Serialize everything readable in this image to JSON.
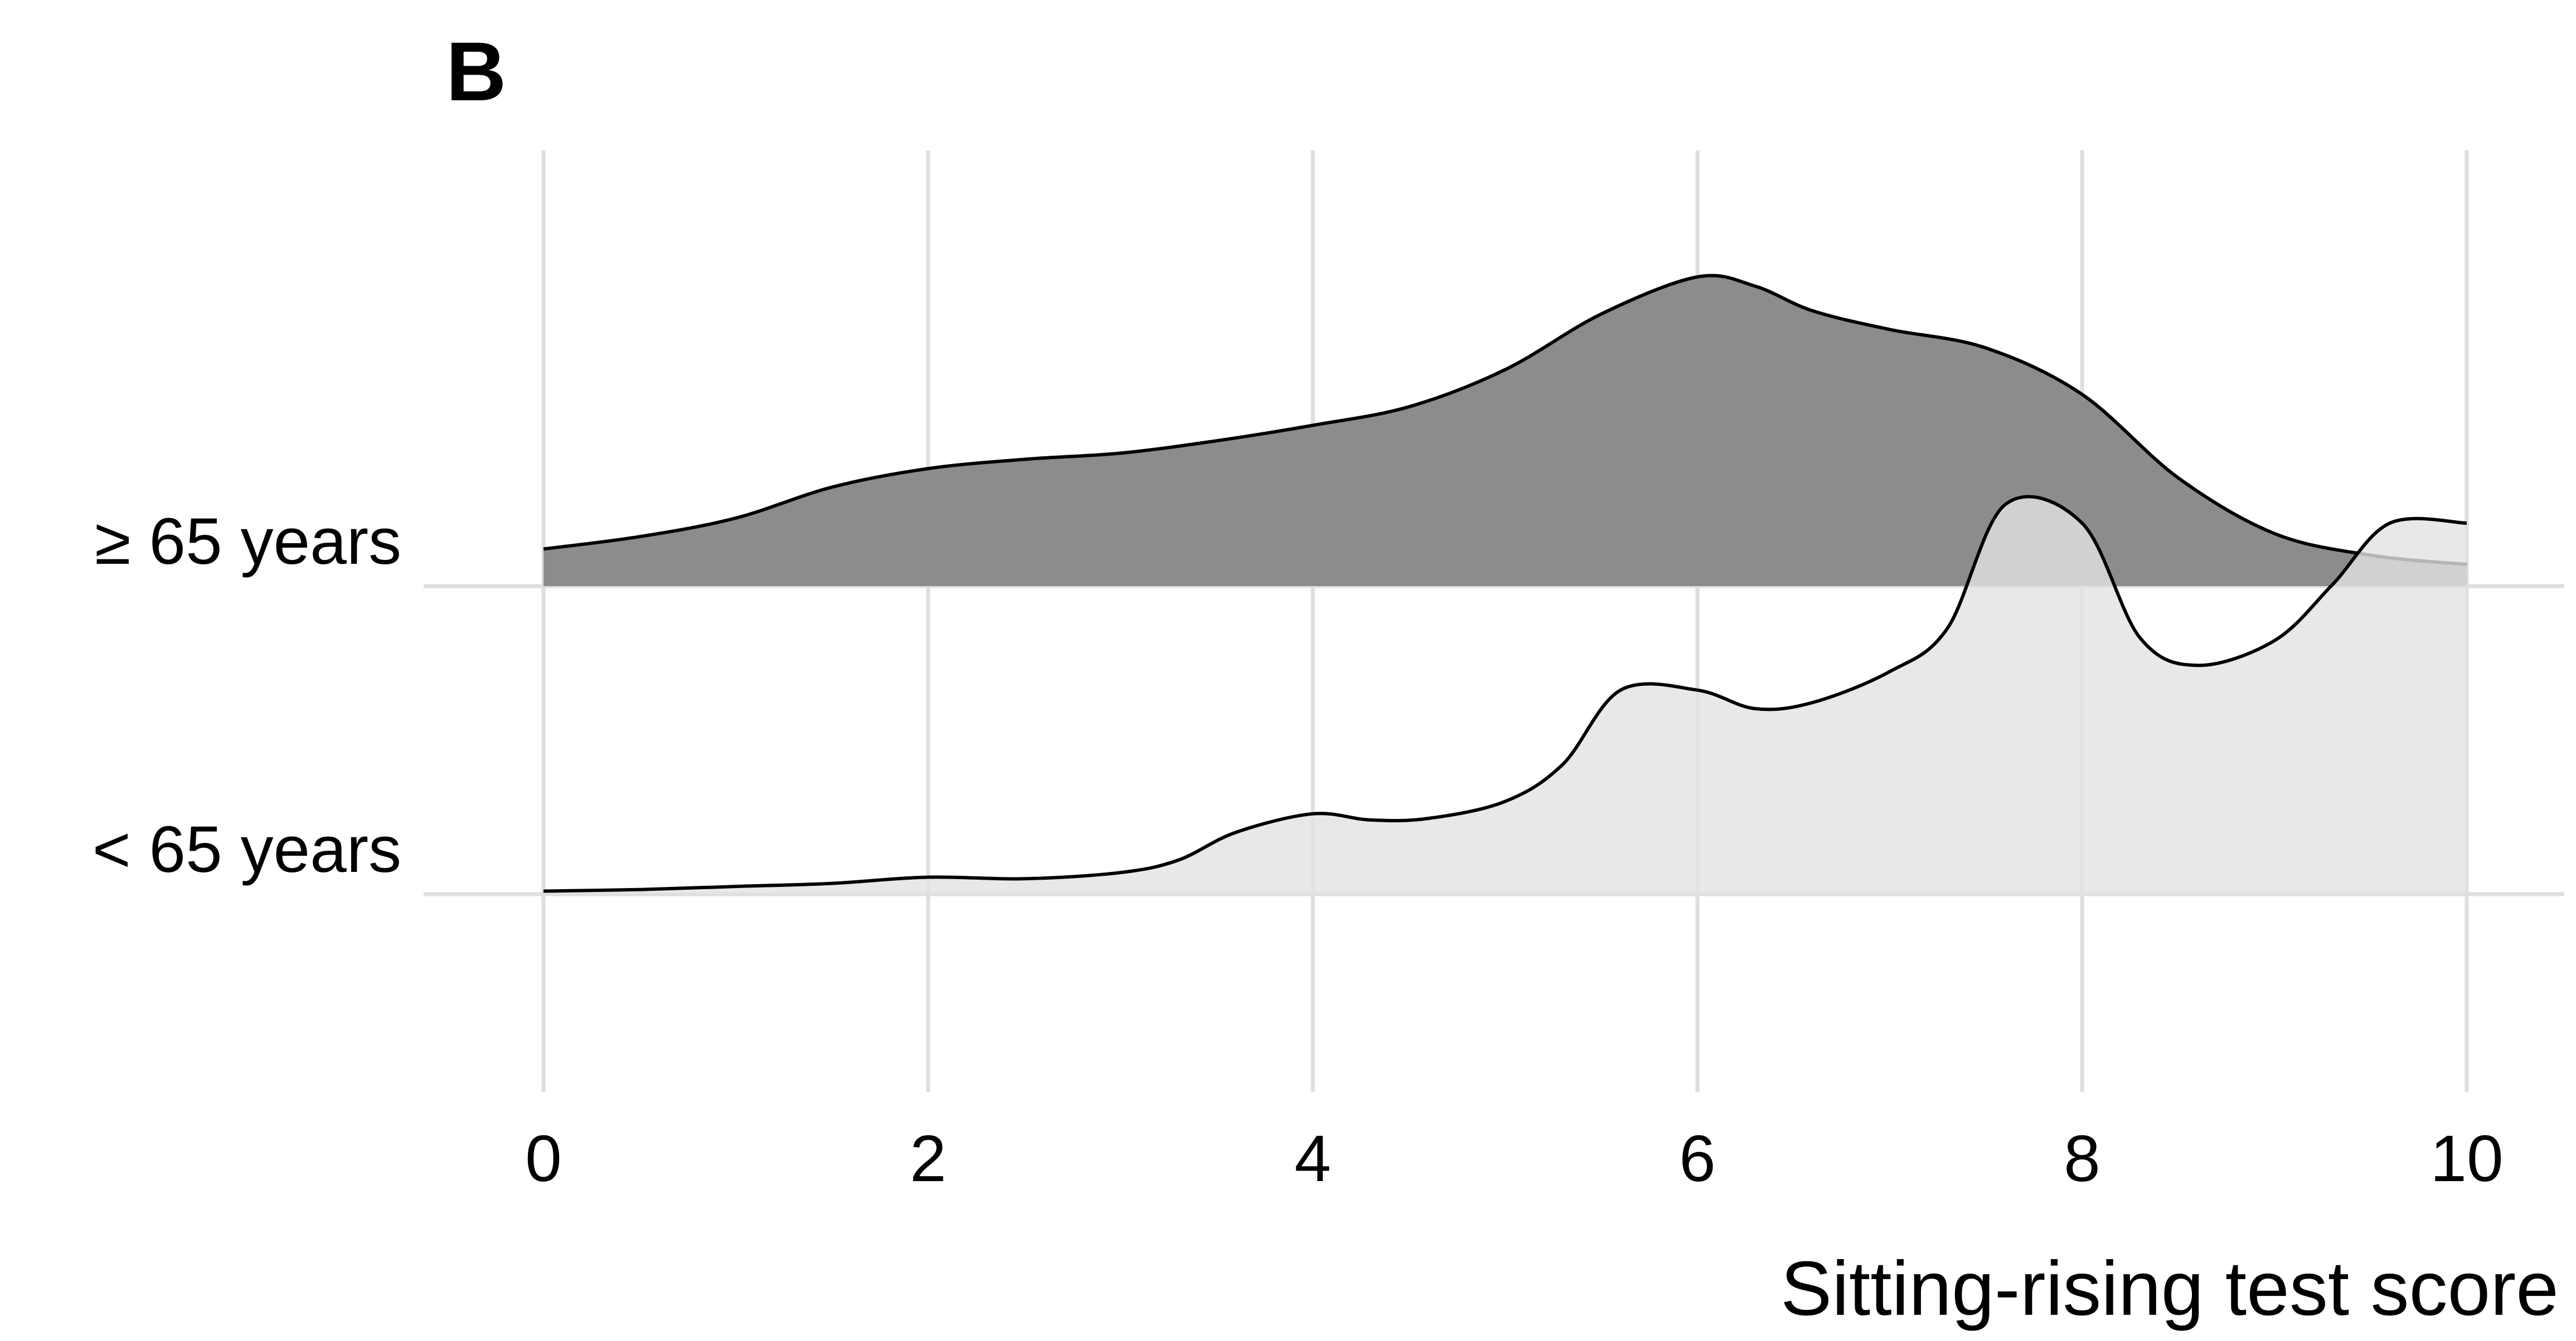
{
  "panel_label": "B",
  "colors": {
    "older": "#8c8c8c",
    "younger": "#e2e2e2",
    "outline": "#000000",
    "grid": "#dedede"
  },
  "chart_data": {
    "type": "ridgeline",
    "xlabel": "Sitting-rising test score",
    "ylabel": "",
    "xlim": [
      0,
      10
    ],
    "x_ticks": [
      0,
      2,
      4,
      6,
      8,
      10
    ],
    "categories": [
      "< 65 years",
      "≥ 65 years"
    ],
    "grid": true,
    "legend": "none",
    "series": [
      {
        "name": "< 65 years",
        "color": "#e2e2e2",
        "x": [
          0,
          0.5,
          1,
          1.5,
          2,
          2.5,
          3,
          3.3,
          3.6,
          4,
          4.3,
          4.6,
          5,
          5.3,
          5.6,
          6,
          6.3,
          6.6,
          7,
          7.3,
          7.6,
          8,
          8.3,
          8.6,
          9,
          9.3,
          9.6,
          10
        ],
        "density": [
          0.01,
          0.015,
          0.025,
          0.035,
          0.055,
          0.05,
          0.07,
          0.11,
          0.2,
          0.26,
          0.24,
          0.245,
          0.3,
          0.42,
          0.66,
          0.66,
          0.6,
          0.62,
          0.72,
          0.86,
          1.26,
          1.2,
          0.83,
          0.74,
          0.82,
          1.0,
          1.2,
          1.2
        ]
      },
      {
        "name": "≥ 65 years",
        "color": "#8c8c8c",
        "x": [
          0,
          0.5,
          1,
          1.5,
          2,
          2.5,
          3,
          3.5,
          4,
          4.5,
          5,
          5.5,
          6,
          6.3,
          6.6,
          7,
          7.5,
          8,
          8.5,
          9,
          9.5,
          10
        ],
        "density": [
          0.12,
          0.16,
          0.22,
          0.32,
          0.38,
          0.41,
          0.43,
          0.47,
          0.52,
          0.58,
          0.7,
          0.88,
          1.0,
          0.97,
          0.89,
          0.83,
          0.77,
          0.62,
          0.35,
          0.17,
          0.1,
          0.07
        ]
      }
    ]
  }
}
